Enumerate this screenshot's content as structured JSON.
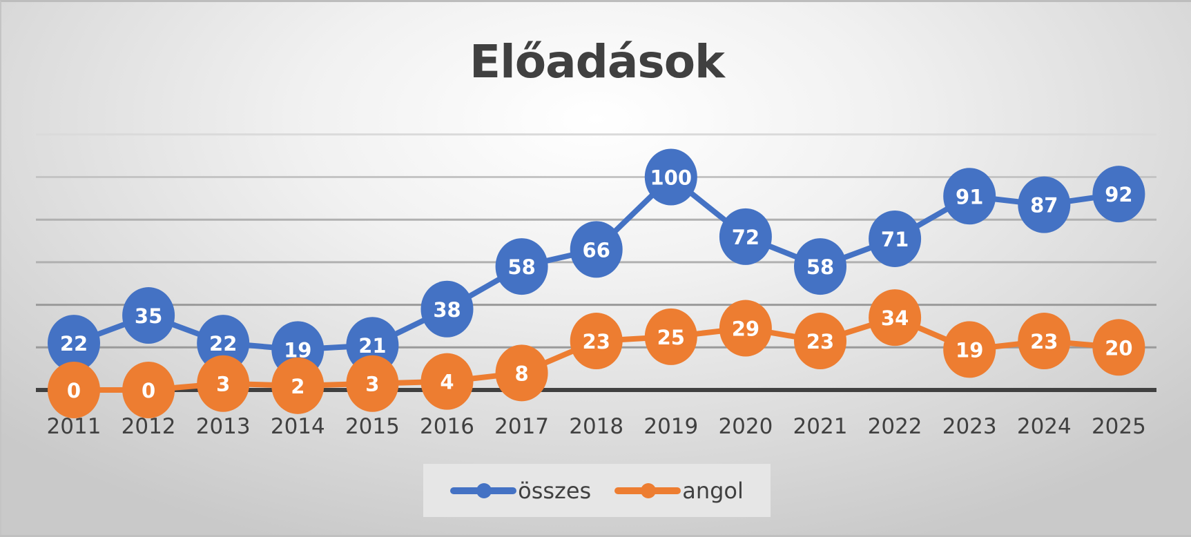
{
  "chart_data": {
    "type": "line",
    "title": "Előadások",
    "xlabel": "",
    "ylabel": "",
    "categories": [
      "2011",
      "2012",
      "2013",
      "2014",
      "2015",
      "2016",
      "2017",
      "2018",
      "2019",
      "2020",
      "2021",
      "2022",
      "2023",
      "2024",
      "2025"
    ],
    "series": [
      {
        "name": "összes",
        "color": "#4472C4",
        "values": [
          22,
          35,
          22,
          19,
          21,
          38,
          58,
          66,
          100,
          72,
          58,
          71,
          91,
          87,
          92
        ]
      },
      {
        "name": "angol",
        "color": "#ED7D31",
        "values": [
          0,
          0,
          3,
          2,
          3,
          4,
          8,
          23,
          25,
          29,
          23,
          34,
          19,
          23,
          20
        ]
      }
    ],
    "ylim": [
      0,
      120
    ],
    "grid_step": 20,
    "grid": true,
    "y_tick_labels_shown": false,
    "data_labels": true,
    "legend_position": "bottom"
  },
  "legend": {
    "items": [
      {
        "label": "összes",
        "color": "#4472C4"
      },
      {
        "label": "angol",
        "color": "#ED7D31"
      }
    ]
  }
}
